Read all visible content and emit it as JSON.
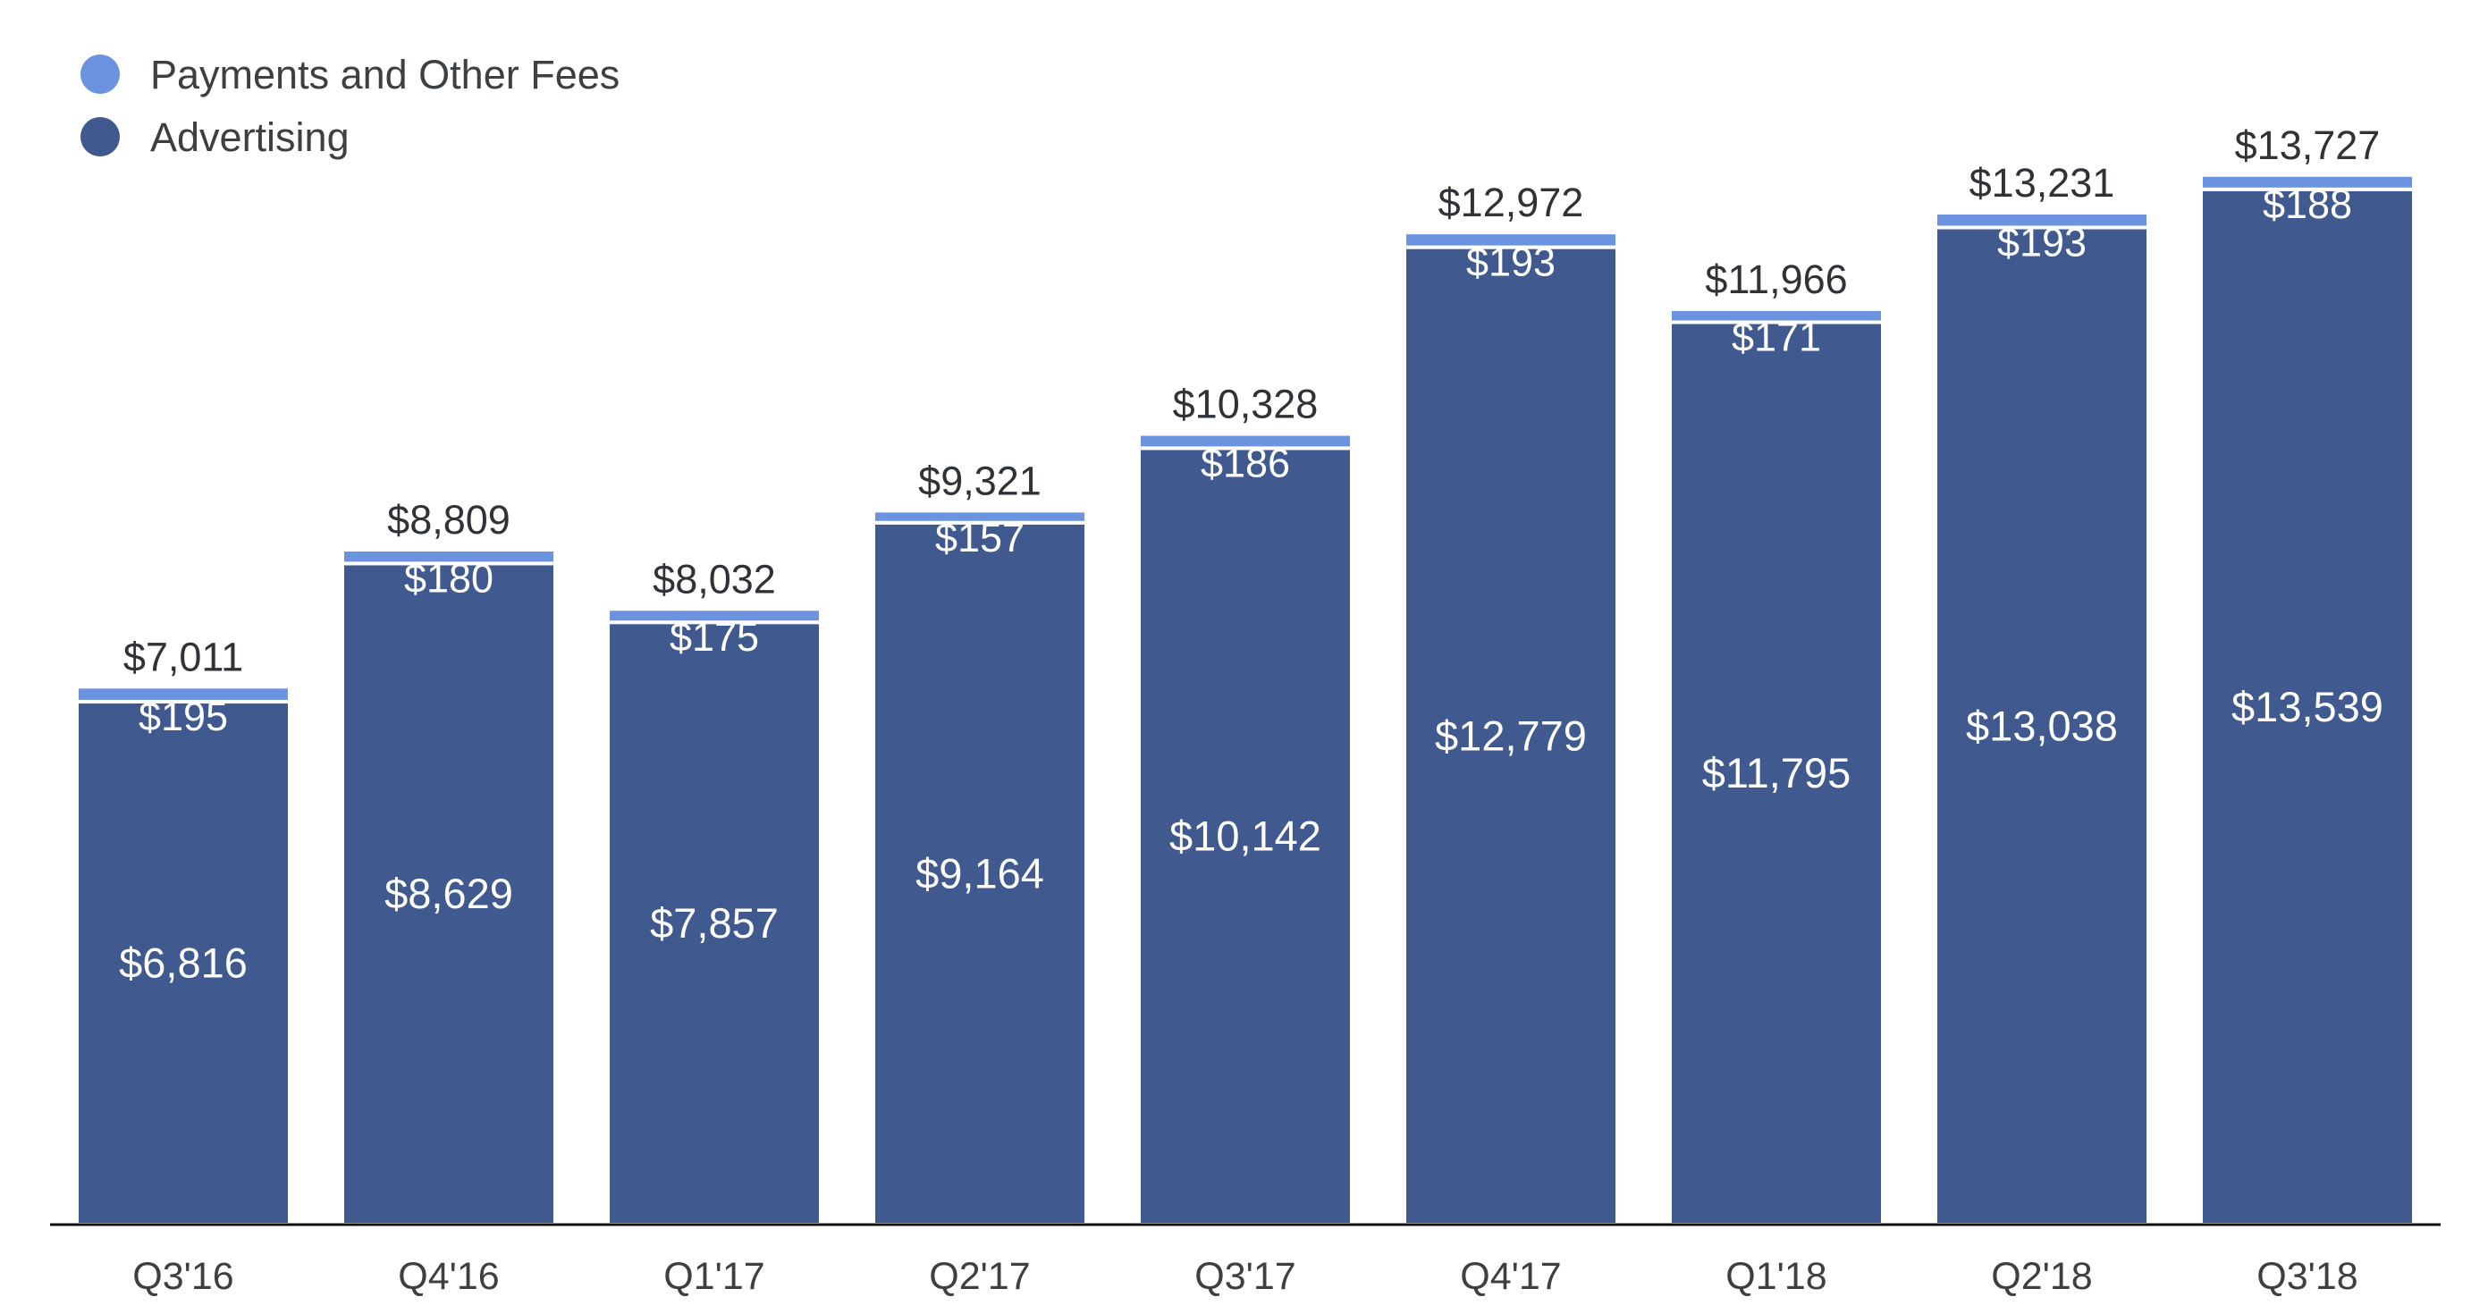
{
  "legend": {
    "items": [
      {
        "label": "Payments and Other Fees",
        "color": "#6b93e0"
      },
      {
        "label": "Advertising",
        "color": "#40598f"
      }
    ]
  },
  "chart_data": {
    "type": "bar",
    "stacked": true,
    "title": "",
    "xlabel": "",
    "ylabel": "",
    "ylim": [
      0,
      14000
    ],
    "grid": false,
    "legend_position": "top-left",
    "categories": [
      "Q3'16",
      "Q4'16",
      "Q1'17",
      "Q2'17",
      "Q3'17",
      "Q4'17",
      "Q1'18",
      "Q2'18",
      "Q3'18"
    ],
    "series": [
      {
        "name": "Advertising",
        "color": "#40598f",
        "values": [
          6816,
          8629,
          7857,
          9164,
          10142,
          12779,
          11795,
          13038,
          13539
        ],
        "labels": [
          "$6,816",
          "$8,629",
          "$7,857",
          "$9,164",
          "$10,142",
          "$12,779",
          "$11,795",
          "$13,038",
          "$13,539"
        ]
      },
      {
        "name": "Payments and Other Fees",
        "color": "#6b93e0",
        "values": [
          195,
          180,
          175,
          157,
          186,
          193,
          171,
          193,
          188
        ],
        "labels": [
          "$195",
          "$180",
          "$175",
          "$157",
          "$186",
          "$193",
          "$171",
          "$193",
          "$188"
        ]
      }
    ],
    "totals": [
      7011,
      8809,
      8032,
      9321,
      10328,
      12972,
      11966,
      13231,
      13727
    ],
    "total_labels": [
      "$7,011",
      "$8,809",
      "$8,032",
      "$9,321",
      "$10,328",
      "$12,972",
      "$11,966",
      "$13,231",
      "$13,727"
    ]
  }
}
